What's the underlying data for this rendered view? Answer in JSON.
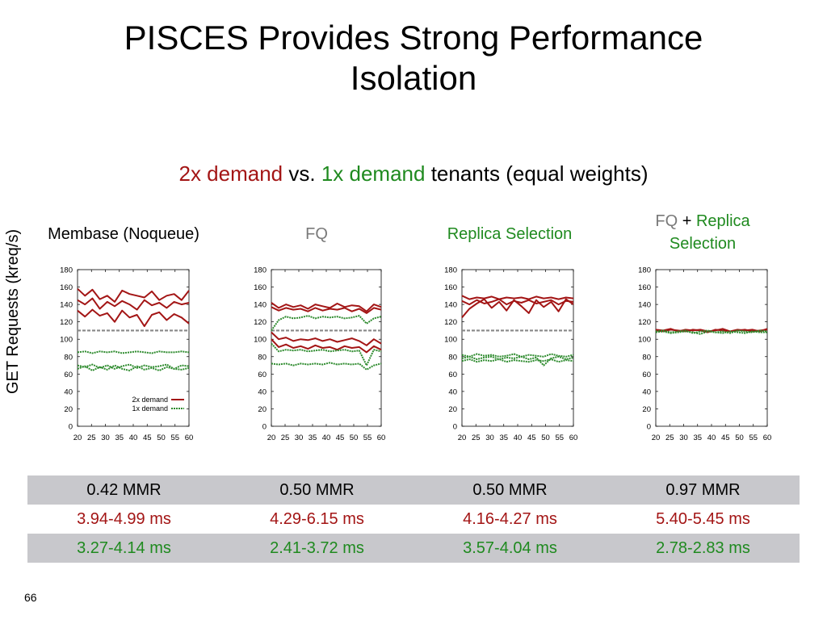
{
  "slide": {
    "title_line1": "PISCES Provides Strong Performance",
    "title_line2": "Isolation",
    "subtitle": {
      "part1": "2x demand",
      "part2": " vs. ",
      "part3": "1x demand",
      "part4": " tenants (equal weights)"
    },
    "ylabel": "GET Requests (kreq/s)",
    "page_number": "66"
  },
  "panel_titles": [
    {
      "a": "Membase (Noqueue)",
      "b": "",
      "c": ""
    },
    {
      "a": "FQ",
      "b": "",
      "c": ""
    },
    {
      "a": "Replica Selection",
      "b": "",
      "c": ""
    },
    {
      "a": "FQ",
      "b": " + ",
      "c": "Replica Selection"
    }
  ],
  "chart_data": [
    {
      "type": "line",
      "title": "Membase (Noqueue)",
      "xlim": [
        20,
        60
      ],
      "ylim": [
        0,
        180
      ],
      "xticks": [
        "20",
        "25",
        "30",
        "35",
        "40",
        "45",
        "50",
        "55",
        "60"
      ],
      "yticks": [
        "0",
        "20",
        "40",
        "60",
        "80",
        "100",
        "120",
        "140",
        "160",
        "180"
      ],
      "reference_line": 110,
      "legend": {
        "position": "bottom-right",
        "entries": [
          "2x demand",
          "1x demand"
        ]
      },
      "series": [
        {
          "name": "2x demand",
          "color": "#a31515",
          "values": [
            158,
            150,
            157,
            146,
            150,
            143,
            156,
            152,
            150,
            148,
            155,
            145,
            150,
            152,
            145,
            156
          ]
        },
        {
          "name": "2x demand",
          "color": "#a31515",
          "values": [
            145,
            140,
            147,
            135,
            143,
            138,
            144,
            140,
            134,
            145,
            139,
            142,
            136,
            143,
            140,
            142
          ]
        },
        {
          "name": "2x demand",
          "color": "#a31515",
          "values": [
            133,
            126,
            134,
            127,
            130,
            120,
            133,
            125,
            128,
            115,
            128,
            131,
            122,
            129,
            125,
            118
          ]
        },
        {
          "name": "1x demand",
          "color": "#2e8b2e",
          "values": [
            85,
            86,
            84,
            86,
            85,
            86,
            84,
            85,
            86,
            85,
            84,
            86,
            85,
            85,
            86,
            85
          ]
        },
        {
          "name": "1x demand",
          "color": "#2e8b2e",
          "values": [
            70,
            68,
            71,
            67,
            70,
            66,
            69,
            71,
            67,
            70,
            68,
            69,
            71,
            66,
            70,
            69
          ]
        },
        {
          "name": "1x demand",
          "color": "#2e8b2e",
          "values": [
            66,
            69,
            64,
            68,
            65,
            70,
            66,
            64,
            69,
            65,
            67,
            64,
            68,
            66,
            65,
            67
          ]
        }
      ]
    },
    {
      "type": "line",
      "title": "FQ",
      "xlim": [
        20,
        60
      ],
      "ylim": [
        0,
        180
      ],
      "xticks": [
        "20",
        "25",
        "30",
        "35",
        "40",
        "45",
        "50",
        "55",
        "60"
      ],
      "yticks": [
        "0",
        "20",
        "40",
        "60",
        "80",
        "100",
        "120",
        "140",
        "160",
        "180"
      ],
      "reference_line": 110,
      "series": [
        {
          "name": "2x demand",
          "color": "#a31515",
          "values": [
            142,
            136,
            140,
            137,
            139,
            135,
            140,
            138,
            136,
            141,
            137,
            139,
            138,
            132,
            140,
            137
          ]
        },
        {
          "name": "2x demand",
          "color": "#a31515",
          "values": [
            137,
            133,
            136,
            134,
            135,
            132,
            136,
            133,
            135,
            134,
            136,
            132,
            135,
            130,
            136,
            134
          ]
        },
        {
          "name": "2x demand",
          "color": "#a31515",
          "values": [
            108,
            100,
            102,
            98,
            100,
            99,
            101,
            98,
            100,
            97,
            99,
            101,
            98,
            93,
            100,
            95
          ]
        },
        {
          "name": "2x demand",
          "color": "#a31515",
          "values": [
            100,
            91,
            94,
            90,
            92,
            89,
            93,
            90,
            91,
            88,
            92,
            90,
            91,
            85,
            92,
            88
          ]
        },
        {
          "name": "1x demand",
          "color": "#2e8b2e",
          "values": [
            110,
            122,
            126,
            124,
            125,
            127,
            124,
            126,
            125,
            126,
            124,
            125,
            127,
            118,
            124,
            126
          ]
        },
        {
          "name": "1x demand",
          "color": "#2e8b2e",
          "values": [
            95,
            86,
            88,
            87,
            88,
            86,
            87,
            88,
            86,
            87,
            88,
            86,
            87,
            70,
            88,
            86
          ]
        },
        {
          "name": "1x demand",
          "color": "#2e8b2e",
          "values": [
            72,
            71,
            72,
            70,
            72,
            71,
            72,
            71,
            73,
            71,
            72,
            71,
            72,
            65,
            70,
            72
          ]
        }
      ]
    },
    {
      "type": "line",
      "title": "Replica Selection",
      "xlim": [
        20,
        60
      ],
      "ylim": [
        0,
        180
      ],
      "xticks": [
        "20",
        "25",
        "30",
        "35",
        "40",
        "45",
        "50",
        "55",
        "60"
      ],
      "yticks": [
        "0",
        "20",
        "40",
        "60",
        "80",
        "100",
        "120",
        "140",
        "160",
        "180"
      ],
      "reference_line": 110,
      "series": [
        {
          "name": "2x demand",
          "color": "#a31515",
          "values": [
            150,
            146,
            148,
            147,
            149,
            146,
            148,
            147,
            148,
            146,
            149,
            147,
            148,
            146,
            148,
            147
          ]
        },
        {
          "name": "2x demand",
          "color": "#a31515",
          "values": [
            144,
            140,
            145,
            141,
            143,
            146,
            140,
            144,
            142,
            145,
            141,
            143,
            145,
            140,
            144,
            143
          ]
        },
        {
          "name": "2x demand",
          "color": "#a31515",
          "values": [
            125,
            135,
            141,
            146,
            136,
            143,
            133,
            145,
            138,
            130,
            145,
            137,
            143,
            132,
            146,
            140
          ]
        },
        {
          "name": "1x demand",
          "color": "#2e8b2e",
          "values": [
            82,
            80,
            83,
            81,
            82,
            80,
            81,
            83,
            80,
            82,
            81,
            80,
            83,
            81,
            80,
            82
          ]
        },
        {
          "name": "1x demand",
          "color": "#2e8b2e",
          "values": [
            78,
            80,
            77,
            79,
            80,
            77,
            79,
            78,
            80,
            77,
            79,
            70,
            78,
            80,
            77,
            79
          ]
        },
        {
          "name": "1x demand",
          "color": "#2e8b2e",
          "values": [
            75,
            77,
            74,
            76,
            75,
            77,
            74,
            76,
            75,
            74,
            76,
            75,
            77,
            74,
            76,
            75
          ]
        }
      ]
    },
    {
      "type": "line",
      "title": "FQ + Replica Selection",
      "xlim": [
        20,
        60
      ],
      "ylim": [
        0,
        180
      ],
      "xticks": [
        "20",
        "25",
        "30",
        "35",
        "40",
        "45",
        "50",
        "55",
        "60"
      ],
      "yticks": [
        "0",
        "20",
        "40",
        "60",
        "80",
        "100",
        "120",
        "140",
        "160",
        "180"
      ],
      "series": [
        {
          "name": "2x demand",
          "color": "#a31515",
          "values": [
            111,
            110,
            112,
            109,
            111,
            110,
            111,
            109,
            110,
            112,
            109,
            111,
            110,
            111,
            109,
            112
          ]
        },
        {
          "name": "2x demand",
          "color": "#a31515",
          "values": [
            110,
            109,
            111,
            110,
            109,
            111,
            110,
            108,
            111,
            110,
            109,
            110,
            111,
            109,
            110,
            111
          ]
        },
        {
          "name": "1x demand",
          "color": "#2e8b2e",
          "values": [
            109,
            110,
            108,
            109,
            110,
            107,
            109,
            110,
            108,
            109,
            107,
            110,
            109,
            108,
            110,
            109
          ]
        },
        {
          "name": "1x demand",
          "color": "#2e8b2e",
          "values": [
            108,
            109,
            107,
            108,
            109,
            108,
            106,
            109,
            108,
            107,
            109,
            108,
            107,
            109,
            108,
            108
          ]
        }
      ]
    }
  ],
  "stats_table": {
    "rows": [
      [
        "0.42 MMR",
        "0.50 MMR",
        "0.50 MMR",
        "0.97 MMR"
      ],
      [
        "3.94-4.99 ms",
        "4.29-6.15 ms",
        "4.16-4.27 ms",
        "5.40-5.45 ms"
      ],
      [
        "3.27-4.14 ms",
        "2.41-3.72 ms",
        "3.57-4.04 ms",
        "2.78-2.83 ms"
      ]
    ],
    "row_colors": [
      "#000000",
      "#a31515",
      "#1f8a1f"
    ]
  }
}
